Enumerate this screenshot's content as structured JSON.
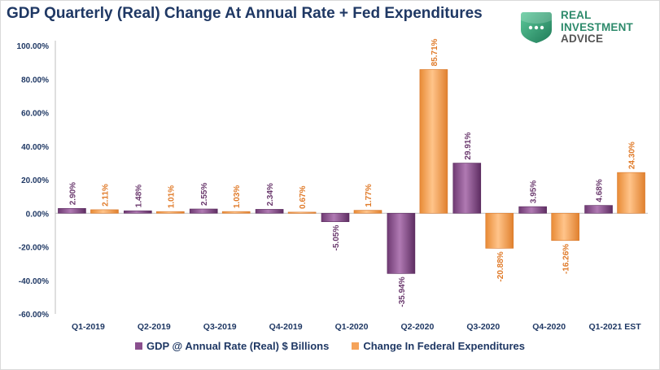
{
  "title": "GDP Quarterly (Real) Change At Annual Rate + Fed Expenditures",
  "logo": {
    "line1": "REAL",
    "line2": "INVESTMENT",
    "line3": "ADVICE",
    "icon": "shield-icon"
  },
  "colors": {
    "gdp": "#8a4f8e",
    "fed": "#f5a35a",
    "gdp_label": "#6b3a6e",
    "fed_label": "#e07b2a",
    "axis_text": "#1f3864"
  },
  "chart_data": {
    "type": "bar",
    "categories": [
      "Q1-2019",
      "Q2-2019",
      "Q3-2019",
      "Q4-2019",
      "Q1-2020",
      "Q2-2020",
      "Q3-2020",
      "Q4-2020",
      "Q1-2021 EST"
    ],
    "series": [
      {
        "name": "GDP @ Annual Rate (Real) $ Billions",
        "values": [
          2.9,
          1.48,
          2.55,
          2.34,
          -5.05,
          -35.94,
          29.91,
          3.95,
          4.68
        ],
        "labels": [
          "2.90%",
          "1.48%",
          "2.55%",
          "2.34%",
          "-5.05%",
          "-35.94%",
          "29.91%",
          "3.95%",
          "4.68%"
        ]
      },
      {
        "name": "Change In Federal Expenditures",
        "values": [
          2.11,
          1.01,
          1.03,
          0.67,
          1.77,
          85.71,
          -20.88,
          -16.26,
          24.3
        ],
        "labels": [
          "2.11%",
          "1.01%",
          "1.03%",
          "0.67%",
          "1.77%",
          "85.71%",
          "-20.88%",
          "-16.26%",
          "24.30%"
        ]
      }
    ],
    "yticks": [
      {
        "value": 100,
        "label": "100.00%"
      },
      {
        "value": 80,
        "label": "80.00%"
      },
      {
        "value": 60,
        "label": "60.00%"
      },
      {
        "value": 40,
        "label": "40.00%"
      },
      {
        "value": 20,
        "label": "20.00%"
      },
      {
        "value": 0,
        "label": "0.00%"
      },
      {
        "value": -20,
        "label": "-20.00%"
      },
      {
        "value": -40,
        "label": "-40.00%"
      },
      {
        "value": -60,
        "label": "-60.00%"
      }
    ],
    "ylim": [
      -60,
      100
    ],
    "xlabel": "",
    "ylabel": "",
    "grid": false,
    "legend_position": "bottom",
    "data_label_rotation": "vertical"
  }
}
